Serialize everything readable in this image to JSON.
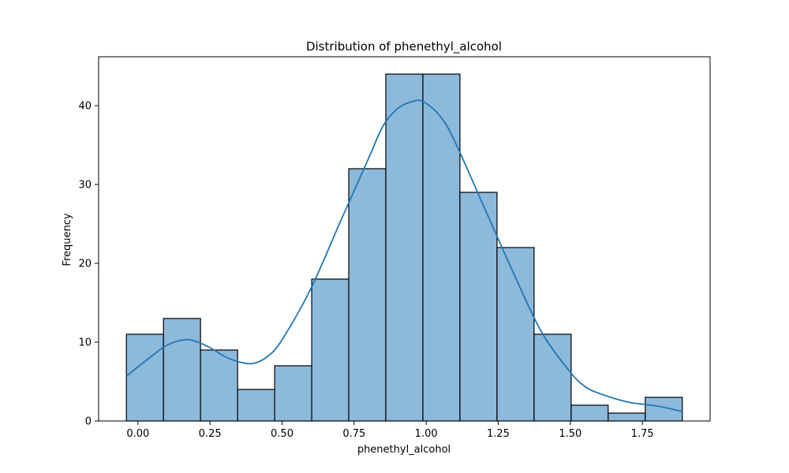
{
  "chart_data": {
    "type": "bar",
    "title": "Distribution of phenethyl_alcohol",
    "xlabel": "phenethyl_alcohol",
    "ylabel": "Frequency",
    "bin_edges": [
      -0.04,
      0.0886,
      0.2171,
      0.3457,
      0.4743,
      0.6029,
      0.7314,
      0.86,
      0.9886,
      1.1171,
      1.2457,
      1.3743,
      1.5029,
      1.6314,
      1.76,
      1.8886
    ],
    "values": [
      11,
      13,
      9,
      4,
      7,
      18,
      32,
      44,
      44,
      29,
      22,
      11,
      2,
      1,
      3
    ],
    "xlim": [
      -0.1364,
      1.985
    ],
    "ylim": [
      0,
      46.2
    ],
    "x_ticks": [
      0.0,
      0.25,
      0.5,
      0.75,
      1.0,
      1.25,
      1.5,
      1.75
    ],
    "x_tick_labels": [
      "0.00",
      "0.25",
      "0.50",
      "0.75",
      "1.00",
      "1.25",
      "1.50",
      "1.75"
    ],
    "y_ticks": [
      0,
      10,
      20,
      30,
      40
    ],
    "y_tick_labels": [
      "0",
      "10",
      "20",
      "30",
      "40"
    ],
    "kde": {
      "x": [
        -0.04,
        0.05,
        0.1,
        0.16,
        0.2,
        0.25,
        0.3,
        0.35,
        0.4,
        0.45,
        0.5,
        0.6,
        0.7,
        0.8,
        0.85,
        0.9,
        0.95,
        0.99,
        1.05,
        1.1,
        1.2,
        1.3,
        1.4,
        1.5,
        1.55,
        1.6,
        1.7,
        1.8,
        1.8886
      ],
      "y": [
        5.7,
        8.3,
        9.6,
        10.3,
        10.1,
        9.3,
        8.2,
        7.5,
        7.3,
        8.2,
        10.3,
        16.8,
        25.1,
        33.3,
        37.4,
        39.6,
        40.5,
        40.5,
        38.6,
        35.4,
        27.2,
        19.0,
        11.3,
        6.2,
        4.4,
        3.5,
        2.4,
        1.9,
        1.2
      ]
    },
    "colors": {
      "bar_fill": "#8db9db",
      "bar_edge": "#000000",
      "kde_line": "#1f77b4"
    },
    "grid": false,
    "legend": "none"
  }
}
